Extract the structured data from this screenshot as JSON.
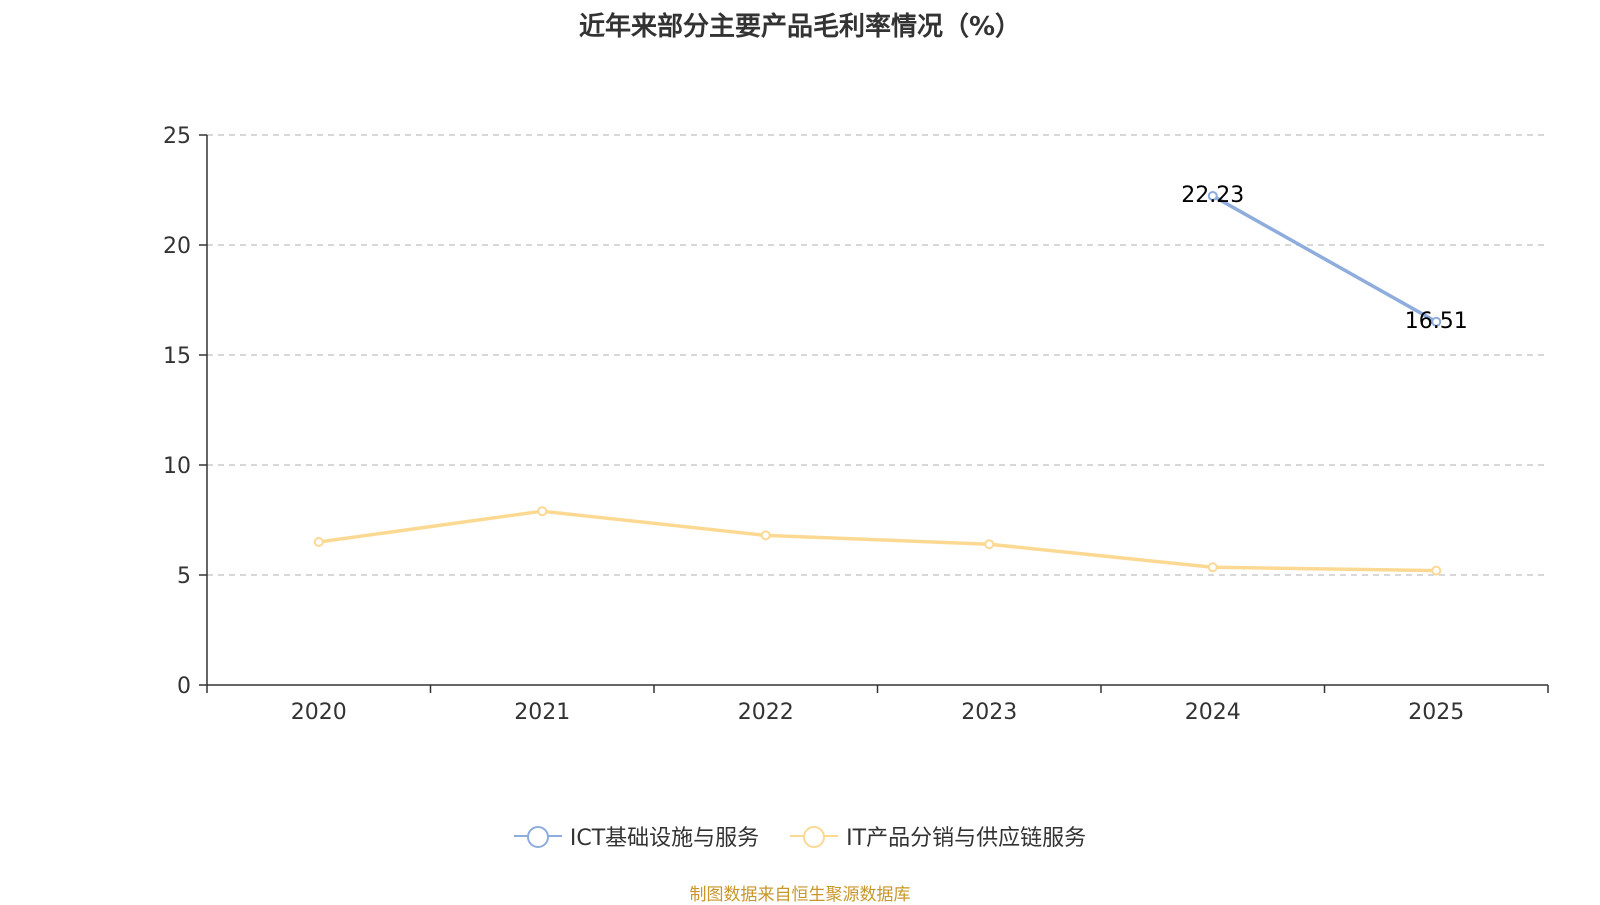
{
  "chart_data": {
    "type": "line",
    "title": "近年来部分主要产品毛利率情况（%）",
    "categories": [
      "2020",
      "2021",
      "2022",
      "2023",
      "2024",
      "2025"
    ],
    "ylim": [
      0,
      25
    ],
    "yticks": [
      0,
      5,
      10,
      15,
      20,
      25
    ],
    "grid": true,
    "legend_position": "bottom",
    "series": [
      {
        "name": "ICT基础设施与服务",
        "color": "#8eacdc",
        "values": [
          null,
          null,
          null,
          null,
          22.23,
          16.51
        ],
        "labels": [
          "",
          "",
          "",
          "",
          "22.23",
          "16.51"
        ]
      },
      {
        "name": "IT产品分销与供应链服务",
        "color": "#fcd993",
        "values": [
          6.5,
          7.9,
          6.8,
          6.4,
          5.35,
          5.2
        ],
        "labels": [
          "",
          "",
          "",
          "",
          "",
          ""
        ]
      }
    ]
  },
  "source": "制图数据来自恒生聚源数据库"
}
